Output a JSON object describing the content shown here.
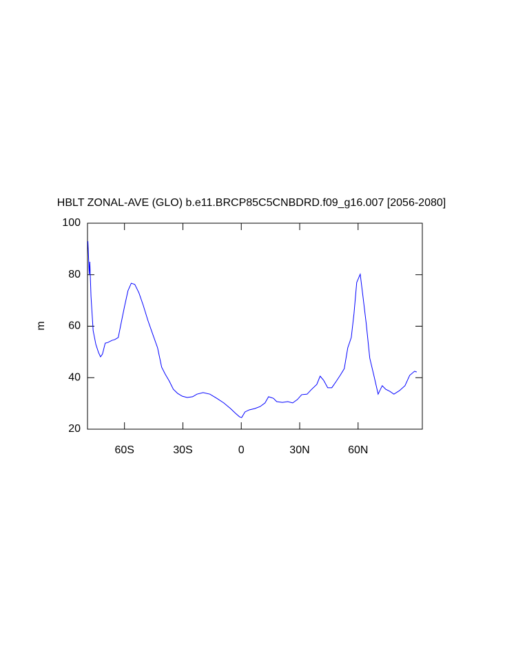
{
  "chart_data": {
    "type": "line",
    "title": "HBLT ZONAL-AVE (GLO) b.e11.BRCP85C5CNBDRD.f09_g16.007 [2056-2080]",
    "y_label": "m",
    "xlim": [
      -79,
      93
    ],
    "ylim": [
      20,
      100
    ],
    "xticks": [
      {
        "value": -60,
        "label": "60S"
      },
      {
        "value": -30,
        "label": "30S"
      },
      0,
      {
        "value": 30,
        "label": "30N"
      },
      {
        "value": 60,
        "label": "60N"
      }
    ],
    "yticks": [
      20,
      40,
      60,
      80,
      100
    ],
    "series": [
      {
        "color": "#0000ff",
        "x": [
          -78.8,
          -78.1,
          -77.8,
          -77.2,
          -76.1,
          -74.7,
          -73.3,
          -72.3,
          -71.3,
          -69.9,
          -68.5,
          -66.4,
          -65.0,
          -63.2,
          -61.8,
          -60,
          -58.2,
          -56.5,
          -54.7,
          -52.6,
          -50.4,
          -48,
          -45.5,
          -43,
          -40.9,
          -39.1,
          -37,
          -34.9,
          -32.7,
          -30.3,
          -27.8,
          -25,
          -22.8,
          -19.6,
          -16.1,
          -12.6,
          -9,
          -5.5,
          -3,
          -0.9,
          0.2,
          1.9,
          4.1,
          6.9,
          9.7,
          12.2,
          14,
          16.5,
          18.2,
          21.1,
          23.9,
          26.4,
          28.8,
          31,
          33.8,
          35.9,
          38.8,
          40.5,
          42.3,
          44.4,
          46.5,
          48.7,
          50.8,
          52.9,
          54.7,
          56.5,
          57.9,
          59.3,
          61.1,
          62.5,
          64.2,
          66,
          68.1,
          70.3,
          72.4,
          74.2,
          76.3,
          78.4,
          81.3,
          84.1,
          86.5,
          89,
          90.1
        ],
        "values": [
          93,
          80.2,
          85,
          71.6,
          58.3,
          52.9,
          49.7,
          48.1,
          49.2,
          53.4,
          53.7,
          54.5,
          54.8,
          55.6,
          60.9,
          67.6,
          73.8,
          76.7,
          76.2,
          73,
          68.2,
          62.3,
          56.9,
          51.6,
          44.1,
          41.4,
          38.7,
          35.5,
          33.9,
          32.8,
          32.3,
          32.6,
          33.6,
          34.2,
          33.6,
          32,
          30.2,
          28,
          26.2,
          24.8,
          24.5,
          26.7,
          27.5,
          28,
          28.8,
          30.2,
          32.6,
          32,
          30.7,
          30.4,
          30.7,
          30.2,
          31.5,
          33.4,
          33.6,
          35.3,
          37.4,
          40.6,
          39,
          36.1,
          36.1,
          38.5,
          40.9,
          43.5,
          51.6,
          55.6,
          64.9,
          77,
          80.2,
          71.6,
          60.9,
          47.6,
          40.9,
          33.6,
          36.9,
          35.5,
          34.7,
          33.6,
          35,
          36.9,
          40.9,
          42.5,
          42.2
        ]
      }
    ]
  }
}
